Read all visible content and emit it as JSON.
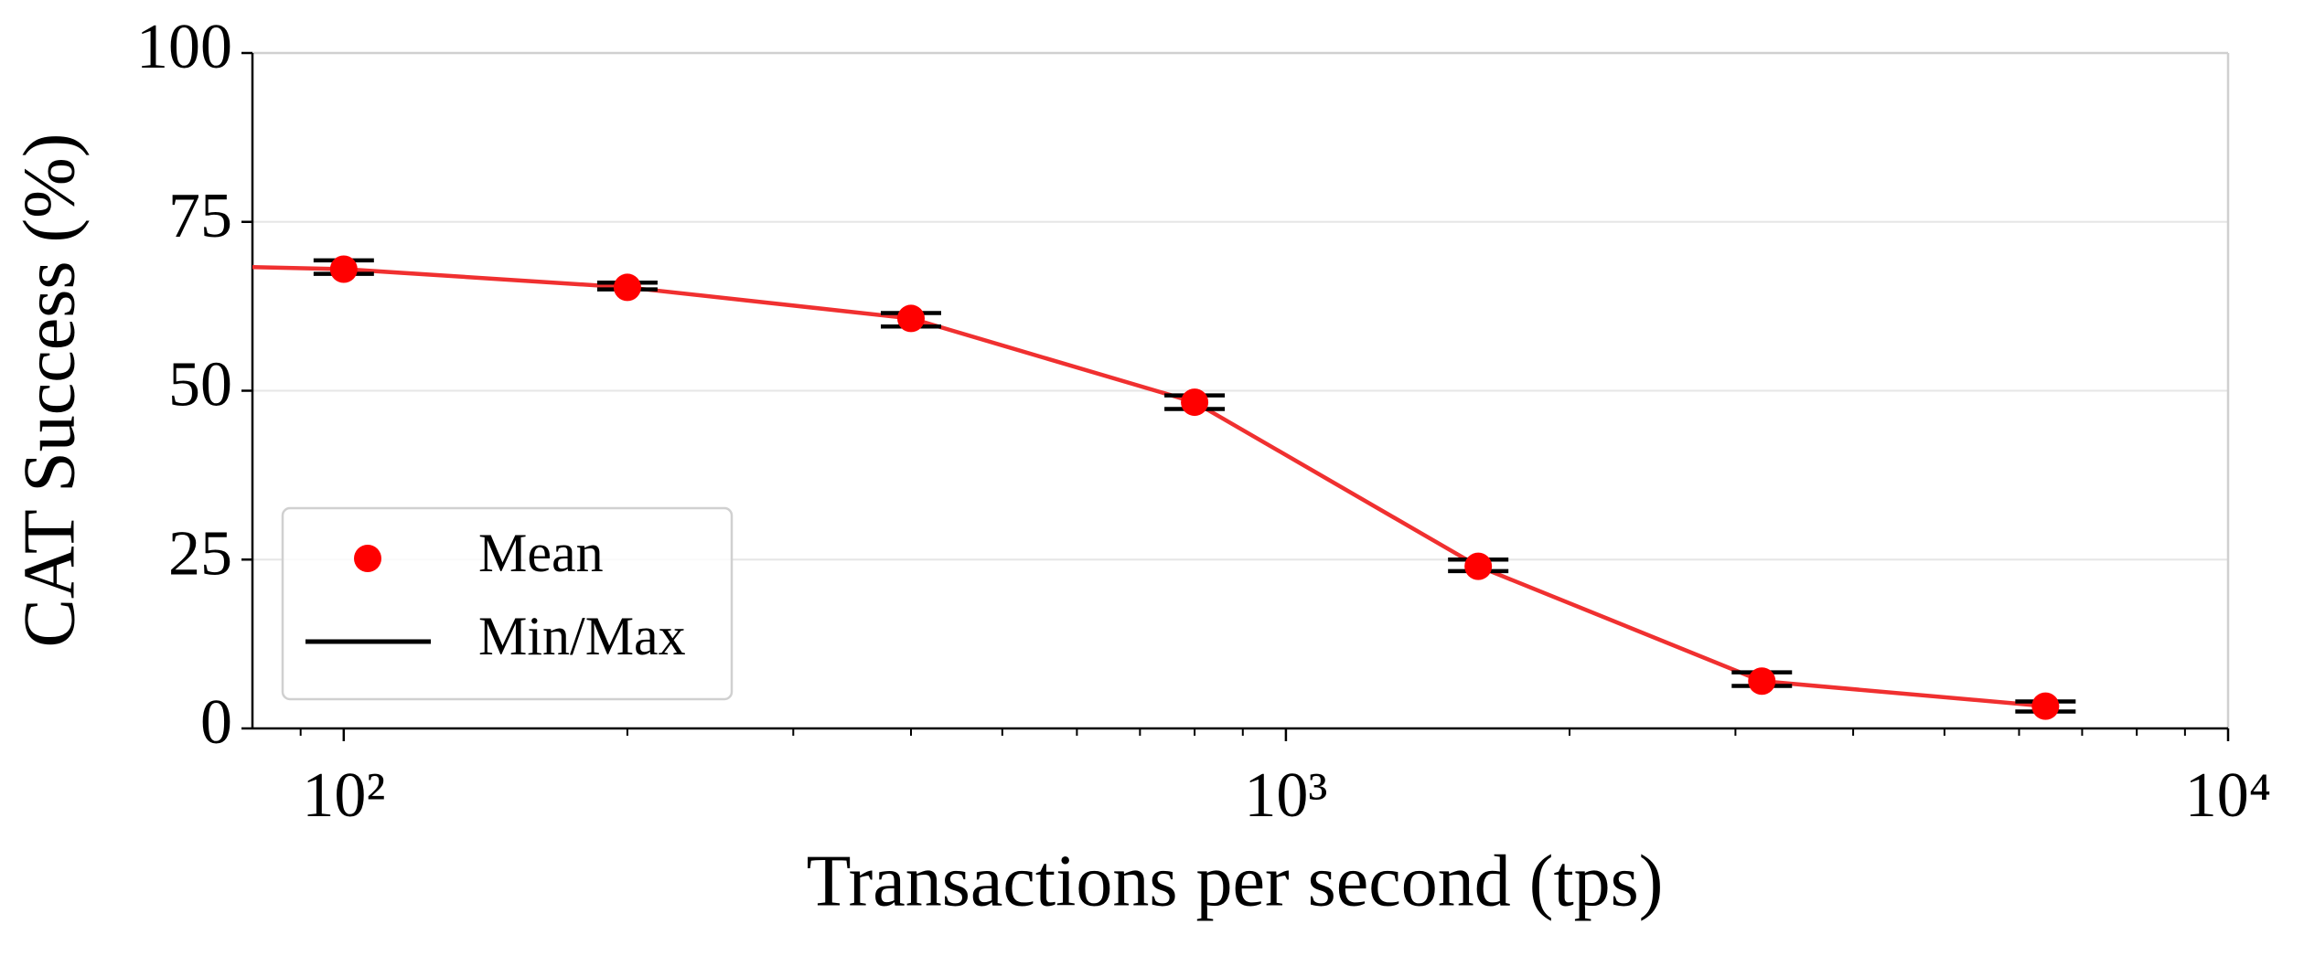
{
  "chart_data": {
    "type": "errorbar",
    "xlabel": "Transactions per second (tps)",
    "ylabel": "CAT Success (%)",
    "x": [
      100,
      200,
      400,
      800,
      1600,
      3200,
      6400
    ],
    "series": [
      {
        "name": "Mean",
        "color": "#ff0000",
        "values": [
          68,
          65.3,
          60.7,
          48.3,
          24,
          7,
          3.3
        ]
      },
      {
        "name": "Min/Max",
        "color": "#000000",
        "min": [
          67.3,
          65,
          59.5,
          47.3,
          23.3,
          6.3,
          2.5
        ],
        "max": [
          69.3,
          66,
          61.5,
          49.3,
          25,
          8.3,
          4
        ]
      }
    ],
    "fit": {
      "color": "#f03030",
      "x": [
        80,
        100,
        200,
        400,
        800,
        1600,
        3200,
        6400
      ],
      "values": [
        68.3,
        68,
        65.3,
        60.7,
        48.3,
        24,
        7,
        3.3
      ]
    },
    "xscale": "log",
    "xlim": [
      80,
      10000
    ],
    "xticks": [
      {
        "value": 100,
        "label": "10²"
      },
      {
        "value": 1000,
        "label": "10³"
      },
      {
        "value": 10000,
        "label": "10⁴"
      }
    ],
    "xminorticks": [
      90,
      200,
      300,
      400,
      500,
      600,
      700,
      800,
      900,
      2000,
      3000,
      4000,
      5000,
      6000,
      7000,
      8000,
      9000
    ],
    "ylim": [
      0,
      100
    ],
    "yticks": [
      0,
      25,
      50,
      75,
      100
    ],
    "grid": true,
    "legend": "lower left"
  }
}
